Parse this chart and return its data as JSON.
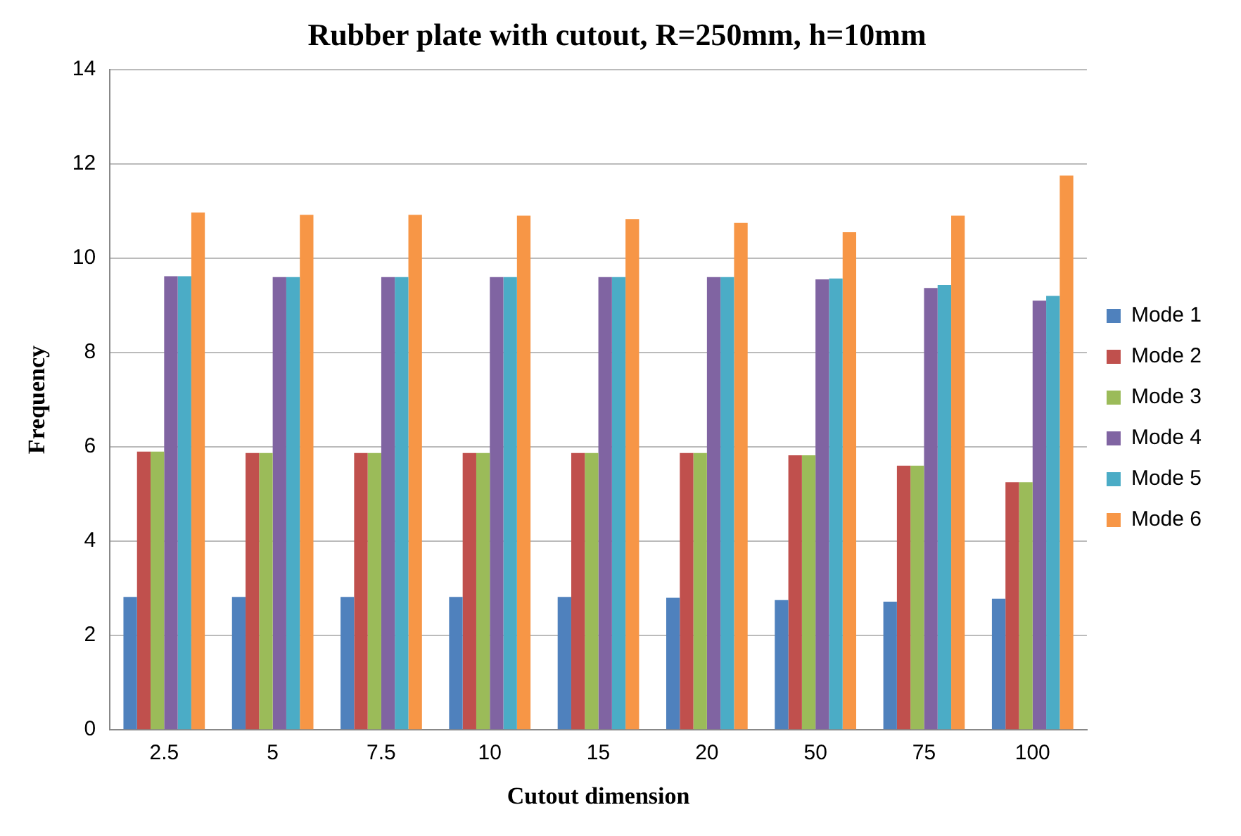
{
  "chart_data": {
    "type": "bar",
    "title": "Rubber plate with cutout, R=250mm, h=10mm",
    "xlabel": "Cutout dimension",
    "ylabel": "Frequency",
    "categories": [
      "2.5",
      "5",
      "7.5",
      "10",
      "15",
      "20",
      "50",
      "75",
      "100"
    ],
    "series": [
      {
        "name": "Mode 1",
        "color": "#4f81bd",
        "values": [
          2.82,
          2.82,
          2.82,
          2.82,
          2.82,
          2.8,
          2.75,
          2.72,
          2.78
        ]
      },
      {
        "name": "Mode 2",
        "color": "#c0504d",
        "values": [
          5.9,
          5.87,
          5.87,
          5.87,
          5.87,
          5.87,
          5.82,
          5.6,
          5.25
        ]
      },
      {
        "name": "Mode 3",
        "color": "#9bbb59",
        "values": [
          5.9,
          5.87,
          5.87,
          5.87,
          5.87,
          5.87,
          5.82,
          5.6,
          5.25
        ]
      },
      {
        "name": "Mode 4",
        "color": "#8064a2",
        "values": [
          9.62,
          9.6,
          9.6,
          9.6,
          9.6,
          9.6,
          9.55,
          9.37,
          9.1
        ]
      },
      {
        "name": "Mode 5",
        "color": "#4bacc6",
        "values": [
          9.62,
          9.6,
          9.6,
          9.6,
          9.6,
          9.6,
          9.57,
          9.43,
          9.2
        ]
      },
      {
        "name": "Mode 6",
        "color": "#f79646",
        "values": [
          10.97,
          10.92,
          10.92,
          10.9,
          10.83,
          10.75,
          10.55,
          10.9,
          11.75
        ]
      }
    ],
    "ylim": [
      0,
      14
    ],
    "yticks": [
      0,
      2,
      4,
      6,
      8,
      10,
      12,
      14
    ],
    "grid": "y",
    "legend": "right"
  }
}
